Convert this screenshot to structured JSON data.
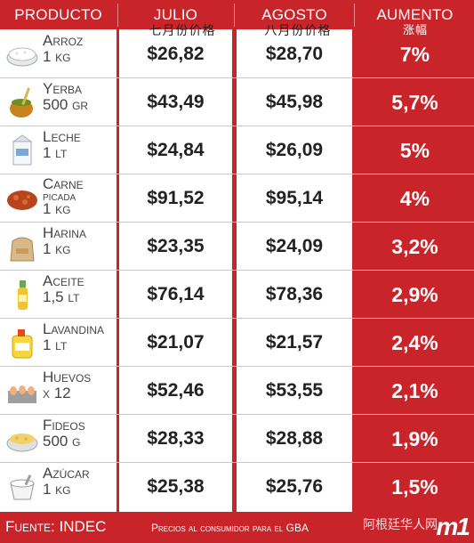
{
  "header": {
    "producto": "PRODUCTO",
    "julio": "JULIO",
    "agosto": "AGOSTO",
    "aumento": "AUMENTO",
    "julio_cn": "七月份价格",
    "agosto_cn": "八月份价格",
    "aumento_cn": "涨幅"
  },
  "rows": [
    {
      "name": "Arroz",
      "qty": "1 kg",
      "julio": "$26,82",
      "agosto": "$28,70",
      "aumento": "7%",
      "icon": "rice-bowl-icon"
    },
    {
      "name": "Yerba",
      "qty": "500 gr",
      "julio": "$43,49",
      "agosto": "$45,98",
      "aumento": "5,7%",
      "icon": "mate-gourd-icon"
    },
    {
      "name": "Leche",
      "qty": "1 lt",
      "julio": "$24,84",
      "agosto": "$26,09",
      "aumento": "5%",
      "icon": "milk-carton-icon"
    },
    {
      "name": "Carne",
      "name2": "picada",
      "qty": "1 kg",
      "julio": "$91,52",
      "agosto": "$95,14",
      "aumento": "4%",
      "icon": "ground-meat-icon"
    },
    {
      "name": "Harina",
      "qty": "1 kg",
      "julio": "$23,35",
      "agosto": "$24,09",
      "aumento": "3,2%",
      "icon": "flour-sack-icon"
    },
    {
      "name": "Aceite",
      "qty": "1,5 lt",
      "julio": "$76,14",
      "agosto": "$78,36",
      "aumento": "2,9%",
      "icon": "oil-bottle-icon"
    },
    {
      "name": "Lavandina",
      "qty": "1 lt",
      "julio": "$21,07",
      "agosto": "$21,57",
      "aumento": "2,4%",
      "icon": "bleach-jug-icon"
    },
    {
      "name": "Huevos",
      "qty": "x 12",
      "julio": "$52,46",
      "agosto": "$53,55",
      "aumento": "2,1%",
      "icon": "egg-carton-icon"
    },
    {
      "name": "Fideos",
      "qty": "500 g",
      "julio": "$28,33",
      "agosto": "$28,88",
      "aumento": "1,9%",
      "icon": "pasta-bowl-icon"
    },
    {
      "name": "Azúcar",
      "qty": "1 kg",
      "julio": "$25,38",
      "agosto": "$25,76",
      "aumento": "1,5%",
      "icon": "sugar-bowl-icon"
    }
  ],
  "footer": {
    "source": "Fuente: INDEC",
    "note": "Precios al consumidor para el GBA",
    "watermark": "阿根廷华人网",
    "logo": "m1"
  },
  "colors": {
    "red": "#c8242a",
    "white": "#ffffff"
  }
}
